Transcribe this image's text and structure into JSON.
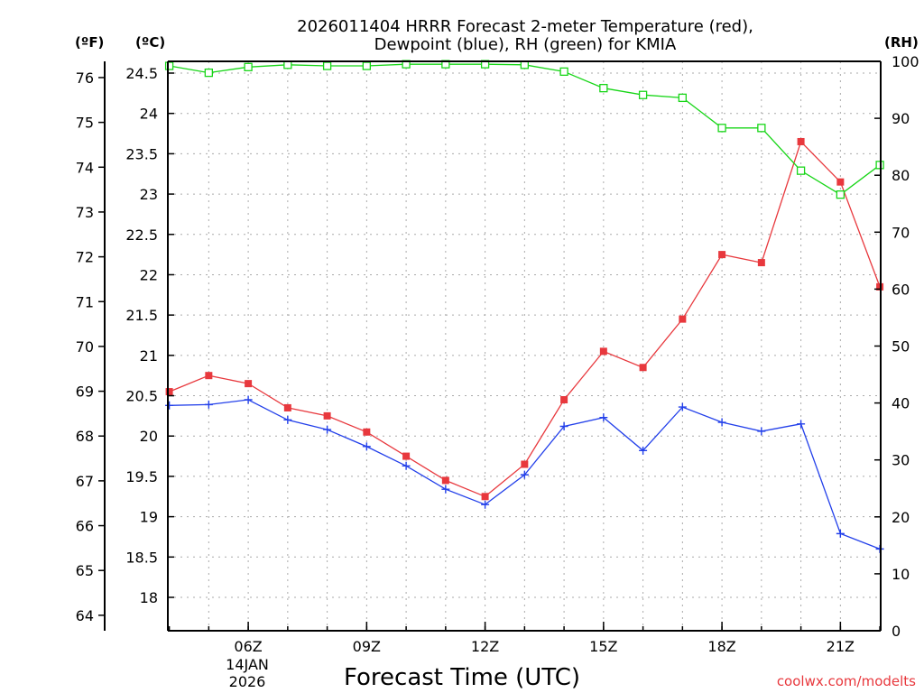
{
  "chart_data": {
    "type": "line",
    "title_line1": "2026011404 HRRR Forecast 2-meter Temperature (red),",
    "title_line2": "Dewpoint (blue), RH (green) for KMIA",
    "unit_f": "(ºF)",
    "unit_c": "(ºC)",
    "unit_rh": "(RH)",
    "xlabel": "Forecast Time (UTC)",
    "credit": "coolwx.com/modelts",
    "date_label": [
      "14JAN",
      "2026"
    ],
    "x_hours": [
      4,
      5,
      6,
      7,
      8,
      9,
      10,
      11,
      12,
      13,
      14,
      15,
      16,
      17,
      18,
      19,
      20,
      21,
      22
    ],
    "x_range": [
      4,
      22
    ],
    "x_ticks": [
      {
        "hour": 6,
        "label": "06Z"
      },
      {
        "hour": 9,
        "label": "09Z"
      },
      {
        "hour": 12,
        "label": "12Z"
      },
      {
        "hour": 15,
        "label": "15Z"
      },
      {
        "hour": 18,
        "label": "18Z"
      },
      {
        "hour": 21,
        "label": "21Z"
      }
    ],
    "ylim_c": [
      17.5,
      24.6
    ],
    "yticks_c": [
      "18",
      "18.5",
      "19",
      "19.5",
      "20",
      "20.5",
      "21",
      "21.5",
      "22",
      "22.5",
      "23",
      "23.5",
      "24",
      "24.5"
    ],
    "yticks_f": [
      "64",
      "65",
      "66",
      "67",
      "68",
      "69",
      "70",
      "71",
      "72",
      "73",
      "74",
      "75",
      "76"
    ],
    "ylim_rh": [
      0,
      100
    ],
    "yticks_rh": [
      "0",
      "10",
      "20",
      "30",
      "40",
      "50",
      "60",
      "70",
      "80",
      "90",
      "100"
    ],
    "series": [
      {
        "name": "Temperature",
        "unit": "C",
        "color": "#e8383d",
        "marker": "filled-square",
        "values": [
          20.55,
          20.75,
          20.65,
          20.35,
          20.25,
          20.05,
          19.75,
          19.45,
          19.25,
          19.65,
          20.45,
          21.05,
          20.85,
          21.45,
          22.25,
          22.15,
          23.65,
          23.15,
          21.85
        ]
      },
      {
        "name": "Dewpoint",
        "unit": "C",
        "color": "#2340ea",
        "marker": "plus",
        "values": [
          20.38,
          20.39,
          20.45,
          20.2,
          20.08,
          19.87,
          19.63,
          19.34,
          19.15,
          19.52,
          20.12,
          20.23,
          19.82,
          20.36,
          20.17,
          20.06,
          20.15,
          18.79,
          18.6
        ]
      },
      {
        "name": "RH",
        "unit": "%",
        "color": "#18d618",
        "marker": "open-square",
        "values": [
          99.2,
          98.0,
          99.0,
          99.4,
          99.2,
          99.2,
          99.5,
          99.5,
          99.5,
          99.4,
          98.2,
          95.3,
          94.1,
          93.6,
          88.3,
          88.3,
          80.8,
          76.6,
          81.8
        ]
      }
    ]
  }
}
